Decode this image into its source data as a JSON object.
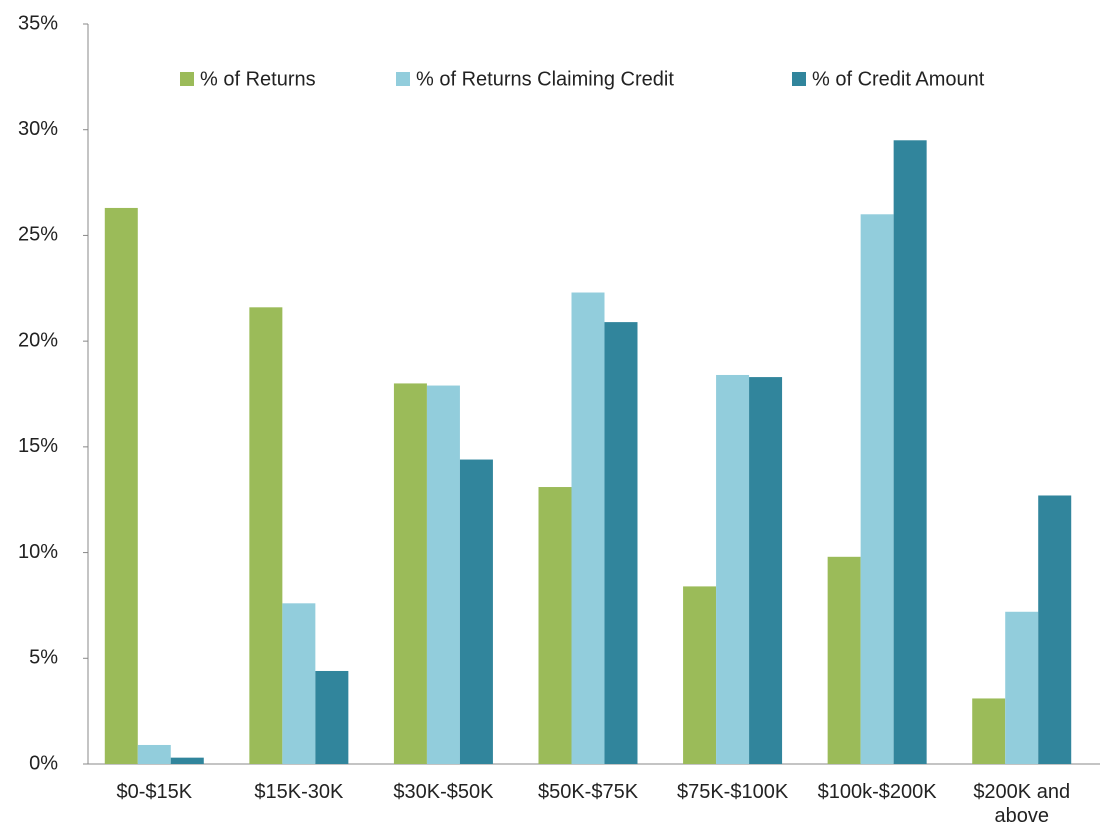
{
  "chart_data": {
    "type": "bar",
    "categories": [
      "$0-$15K",
      "$15K-30K",
      "$30K-$50K",
      "$50K-$75K",
      "$75K-$100K",
      "$100k-$200K",
      "$200K and above"
    ],
    "series": [
      {
        "name": "% of Returns",
        "color": "#9bbb59",
        "values": [
          26.3,
          21.6,
          18.0,
          13.1,
          8.4,
          9.8,
          3.1
        ]
      },
      {
        "name": "% of Returns Claiming Credit",
        "color": "#92cddc",
        "values": [
          0.9,
          7.6,
          17.9,
          22.3,
          18.4,
          26.0,
          7.2
        ]
      },
      {
        "name": "% of Credit Amount",
        "color": "#31859c",
        "values": [
          0.3,
          4.4,
          14.4,
          20.9,
          18.3,
          29.5,
          12.7
        ]
      }
    ],
    "ylim": [
      0,
      35
    ],
    "yticks": [
      {
        "value": 0,
        "label": "0%"
      },
      {
        "value": 5,
        "label": "5%"
      },
      {
        "value": 10,
        "label": "10%"
      },
      {
        "value": 15,
        "label": "15%"
      },
      {
        "value": 20,
        "label": "20%"
      },
      {
        "value": 25,
        "label": "25%"
      },
      {
        "value": 30,
        "label": "30%"
      },
      {
        "value": 35,
        "label": "35%"
      }
    ],
    "grid": false,
    "legend": "top"
  }
}
